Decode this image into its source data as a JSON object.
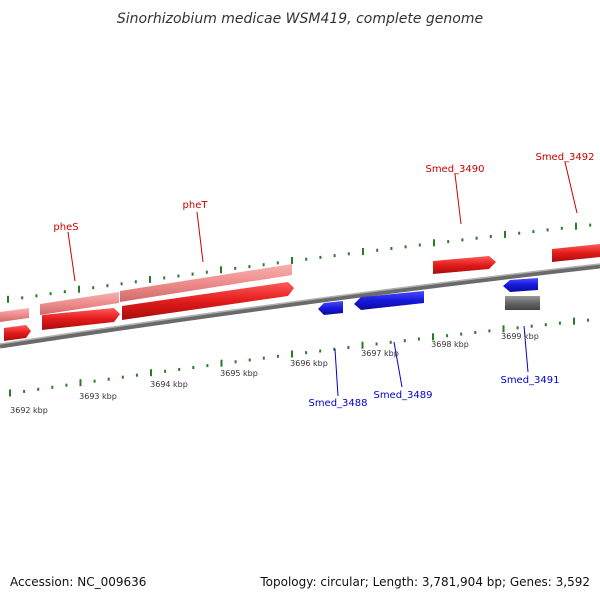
{
  "title": "Sinorhizobium medicae WSM419, complete genome",
  "footer": {
    "accession": "Accession: NC_009636",
    "summary": "Topology: circular; Length: 3,781,904 bp; Genes: 3,592"
  },
  "genes_forward": [
    {
      "label": "pheS",
      "strand": "+"
    },
    {
      "label": "pheT",
      "strand": "+"
    },
    {
      "label": "Smed_3490",
      "strand": "+"
    },
    {
      "label": "Smed_3492",
      "strand": "+"
    }
  ],
  "genes_reverse": [
    {
      "label": "Smed_3488",
      "strand": "-"
    },
    {
      "label": "Smed_3489",
      "strand": "-"
    },
    {
      "label": "Smed_3491",
      "strand": "-"
    }
  ],
  "scale_ticks": [
    "3692 kbp",
    "3693 kbp",
    "3694 kbp",
    "3695 kbp",
    "3696 kbp",
    "3697 kbp",
    "3698 kbp",
    "3699 kbp"
  ],
  "colors": {
    "forward_gene": "#e31b1b",
    "forward_gene_light": "#f09090",
    "reverse_gene": "#1818dd",
    "other_gene": "#666666",
    "backbone": "#888888",
    "tick": "#2a7a2a",
    "forward_label": "#cc0000",
    "reverse_label": "#0000cc"
  }
}
